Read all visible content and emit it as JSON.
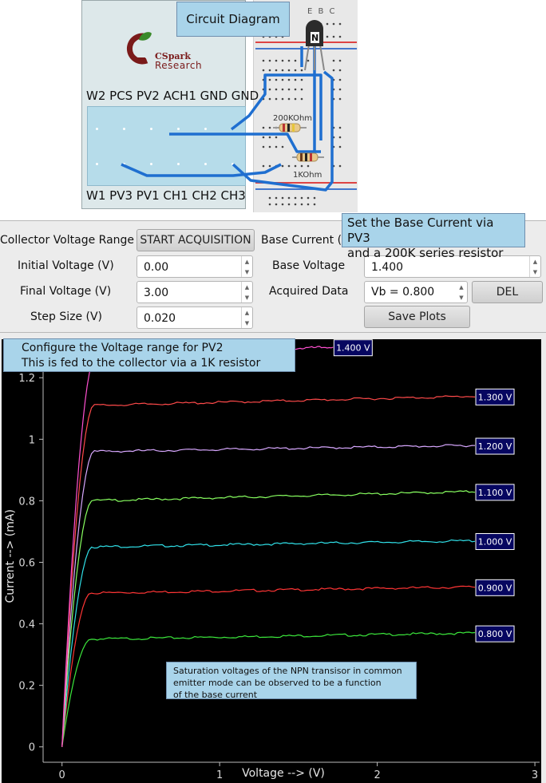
{
  "circuit": {
    "title": "Circuit Diagram",
    "logo_line1": "CSpark",
    "logo_line2": "Research",
    "top_pin_labels": "W2 PCS PV2 ACH1 GND GND",
    "bottom_pin_labels": "W1 PV3 PV1 CH1 CH2 CH3",
    "transistor_pins": "E B C",
    "transistor_type": "N",
    "resistor_1": "200KOhm",
    "resistor_2": "1KOhm"
  },
  "controls": {
    "collector_voltage_range_label": "Collector Voltage Range",
    "start_button": "START ACQUISITION",
    "base_current_label": "Base Current (I",
    "initial_voltage_label": "Initial Voltage (V)",
    "initial_voltage": "0.00",
    "final_voltage_label": "Final Voltage (V)",
    "final_voltage": "3.00",
    "step_size_label": "Step Size (V)",
    "step_size": "0.020",
    "base_voltage_label": "Base Voltage",
    "base_voltage": "1.400",
    "acquired_data_label": "Acquired Data",
    "acquired_data_selected": "Vb = 0.800",
    "del_button": "DEL",
    "save_plots_button": "Save Plots"
  },
  "tooltips": {
    "base_current_line1": "Set the Base Current via PV3",
    "base_current_line2": "and a 200K series resistor",
    "voltage_range_line1": "Configure the Voltage range for PV2",
    "voltage_range_line2": "This is fed to the collector via a 1K resistor",
    "saturation_line1": "Saturation voltages of the NPN transisor in common",
    "saturation_line2": "emitter mode can be observed to be a function",
    "saturation_line3": "of the base current"
  },
  "colors": {
    "plot_background": "#000000",
    "tooltip_bg": "#a9d4ea",
    "label_box": "#060660"
  },
  "chart_data": {
    "type": "line",
    "xlabel": "Voltage --> (V)",
    "ylabel": "Current --> (mA)",
    "xlim": [
      -0.12,
      3.03
    ],
    "ylim": [
      -0.05,
      1.32
    ],
    "xticks": [
      0,
      1,
      2,
      3
    ],
    "yticks": [
      0,
      0.2,
      0.4,
      0.6,
      0.8,
      1,
      1.2
    ],
    "ytick_labels": [
      "0",
      "0.2",
      "0.4",
      "0.6",
      "0.8",
      "1",
      "1.2"
    ],
    "grid": false,
    "series": [
      {
        "name": "0.800 V",
        "color": "#3ce83c",
        "saturation_x": 0.18,
        "current": [
          0.35,
          0.37
        ]
      },
      {
        "name": "0.900 V",
        "color": "#ff3535",
        "saturation_x": 0.18,
        "current": [
          0.5,
          0.52
        ]
      },
      {
        "name": "1.000 V",
        "color": "#30e0e8",
        "saturation_x": 0.19,
        "current": [
          0.65,
          0.67
        ]
      },
      {
        "name": "1.100 V",
        "color": "#88ff60",
        "saturation_x": 0.19,
        "current": [
          0.8,
          0.83
        ]
      },
      {
        "name": "1.200 V",
        "color": "#d8a8ff",
        "saturation_x": 0.2,
        "current": [
          0.96,
          0.98
        ]
      },
      {
        "name": "1.300 V",
        "color": "#ff4a4a",
        "saturation_x": 0.2,
        "current": [
          1.11,
          1.14
        ]
      },
      {
        "name": "1.400 V",
        "color": "#ff50d0",
        "saturation_x": 0.21,
        "current": [
          1.27,
          1.3
        ]
      }
    ]
  }
}
